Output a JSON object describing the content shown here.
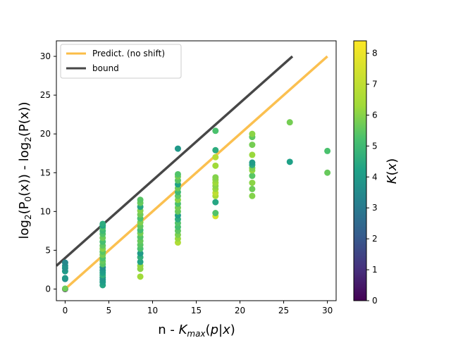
{
  "chart_data": {
    "type": "scatter",
    "title": "",
    "xlabel": "n - K_max(p|x)",
    "ylabel": "log2(P0(x)) - log2(P(x))",
    "xlim": [
      -1,
      31
    ],
    "ylim": [
      -1.5,
      32
    ],
    "x_ticks": [
      0,
      5,
      10,
      15,
      20,
      25,
      30
    ],
    "y_ticks": [
      0,
      5,
      10,
      15,
      20,
      25,
      30
    ],
    "colorbar": {
      "label": "K(x)",
      "range": [
        0,
        8.4
      ],
      "ticks": [
        0,
        1,
        2,
        3,
        4,
        5,
        6,
        7,
        8
      ],
      "colormap": "viridis"
    },
    "legend": {
      "position": "top-left",
      "entries": [
        {
          "label": "Predict. (no shift)",
          "color": "#fbbd47"
        },
        {
          "label": "bound",
          "color": "#474747"
        }
      ]
    },
    "lines": [
      {
        "name": "Predict. (no shift)",
        "color": "#fbbd47",
        "x": [
          0,
          30
        ],
        "y": [
          0,
          30
        ]
      },
      {
        "name": "bound",
        "color": "#474747",
        "x": [
          -1,
          26
        ],
        "y": [
          3.0,
          30.0
        ]
      }
    ],
    "series": [
      {
        "name": "points",
        "points": [
          [
            0,
            0.0,
            0.3
          ],
          [
            0,
            0.05,
            6.5
          ],
          [
            0,
            1.3,
            4.0
          ],
          [
            0,
            1.4,
            4.5
          ],
          [
            0,
            2.3,
            4.6
          ],
          [
            0,
            2.7,
            4.2
          ],
          [
            0,
            3.0,
            4.3
          ],
          [
            0,
            3.4,
            3.9
          ],
          [
            4.3,
            0.5,
            5.0
          ],
          [
            4.3,
            0.9,
            4.7
          ],
          [
            4.3,
            1.2,
            4.5
          ],
          [
            4.3,
            1.5,
            4.4
          ],
          [
            4.3,
            1.8,
            5.3
          ],
          [
            4.3,
            2.1,
            4.8
          ],
          [
            4.3,
            2.4,
            4.6
          ],
          [
            4.3,
            2.8,
            4.2
          ],
          [
            4.3,
            3.2,
            6.2
          ],
          [
            4.3,
            3.6,
            6.4
          ],
          [
            4.3,
            4.0,
            6.0
          ],
          [
            4.3,
            4.4,
            6.6
          ],
          [
            4.3,
            4.8,
            6.2
          ],
          [
            4.3,
            5.2,
            6.8
          ],
          [
            4.3,
            5.6,
            6.3
          ],
          [
            4.3,
            6.1,
            5.9
          ],
          [
            4.3,
            6.6,
            6.5
          ],
          [
            4.3,
            7.1,
            6.1
          ],
          [
            4.3,
            7.5,
            5.7
          ],
          [
            4.3,
            7.9,
            6.0
          ],
          [
            4.3,
            8.2,
            4.8
          ],
          [
            4.3,
            8.4,
            5.2
          ],
          [
            8.6,
            1.6,
            7.2
          ],
          [
            8.6,
            2.6,
            6.9
          ],
          [
            8.6,
            3.0,
            7.0
          ],
          [
            8.6,
            3.5,
            4.9
          ],
          [
            8.6,
            4.1,
            5.3
          ],
          [
            8.6,
            4.6,
            4.6
          ],
          [
            8.6,
            5.2,
            6.0
          ],
          [
            8.6,
            5.7,
            6.2
          ],
          [
            8.6,
            6.2,
            6.4
          ],
          [
            8.6,
            6.7,
            6.1
          ],
          [
            8.6,
            7.2,
            6.6
          ],
          [
            8.6,
            7.6,
            5.8
          ],
          [
            8.6,
            8.1,
            6.3
          ],
          [
            8.6,
            8.6,
            6.7
          ],
          [
            8.6,
            9.1,
            6.0
          ],
          [
            8.6,
            9.6,
            6.5
          ],
          [
            8.6,
            10.1,
            6.8
          ],
          [
            8.6,
            10.6,
            5.0
          ],
          [
            8.6,
            11.1,
            6.4
          ],
          [
            8.6,
            11.5,
            6.2
          ],
          [
            12.9,
            6.0,
            7.4
          ],
          [
            12.9,
            6.5,
            7.1
          ],
          [
            12.9,
            7.0,
            6.7
          ],
          [
            12.9,
            7.5,
            6.3
          ],
          [
            12.9,
            8.0,
            5.9
          ],
          [
            12.9,
            8.5,
            6.1
          ],
          [
            12.9,
            9.0,
            5.2
          ],
          [
            12.9,
            9.5,
            4.7
          ],
          [
            12.9,
            10.0,
            6.4
          ],
          [
            12.9,
            10.5,
            6.6
          ],
          [
            12.9,
            11.0,
            6.0
          ],
          [
            12.9,
            11.5,
            6.9
          ],
          [
            12.9,
            12.0,
            6.3
          ],
          [
            12.9,
            12.5,
            5.7
          ],
          [
            12.9,
            13.0,
            6.5
          ],
          [
            12.9,
            13.5,
            4.8
          ],
          [
            12.9,
            14.0,
            6.2
          ],
          [
            12.9,
            14.5,
            6.6
          ],
          [
            12.9,
            14.8,
            6.1
          ],
          [
            12.9,
            18.1,
            4.5
          ],
          [
            17.2,
            9.4,
            7.9
          ],
          [
            17.2,
            9.8,
            6.1
          ],
          [
            17.2,
            11.2,
            5.0
          ],
          [
            17.2,
            12.0,
            7.3
          ],
          [
            17.2,
            12.4,
            7.6
          ],
          [
            17.2,
            12.9,
            7.1
          ],
          [
            17.2,
            13.3,
            6.9
          ],
          [
            17.2,
            13.7,
            7.2
          ],
          [
            17.2,
            14.1,
            7.0
          ],
          [
            17.2,
            14.4,
            6.8
          ],
          [
            17.2,
            15.9,
            7.2
          ],
          [
            17.2,
            17.0,
            7.5
          ],
          [
            17.2,
            17.9,
            5.2
          ],
          [
            17.2,
            20.4,
            6.0
          ],
          [
            21.4,
            12.0,
            6.8
          ],
          [
            21.4,
            12.9,
            6.5
          ],
          [
            21.4,
            13.7,
            6.9
          ],
          [
            21.4,
            14.6,
            6.2
          ],
          [
            21.4,
            15.3,
            7.0
          ],
          [
            21.4,
            15.6,
            6.7
          ],
          [
            21.4,
            16.0,
            5.1
          ],
          [
            21.4,
            16.3,
            4.6
          ],
          [
            21.4,
            17.3,
            7.1
          ],
          [
            21.4,
            18.6,
            6.6
          ],
          [
            21.4,
            19.6,
            6.3
          ],
          [
            21.4,
            20.0,
            6.9
          ],
          [
            25.7,
            16.4,
            4.8
          ],
          [
            25.7,
            21.5,
            6.6
          ],
          [
            30,
            15.0,
            6.4
          ],
          [
            30,
            17.8,
            6.0
          ]
        ]
      }
    ]
  }
}
